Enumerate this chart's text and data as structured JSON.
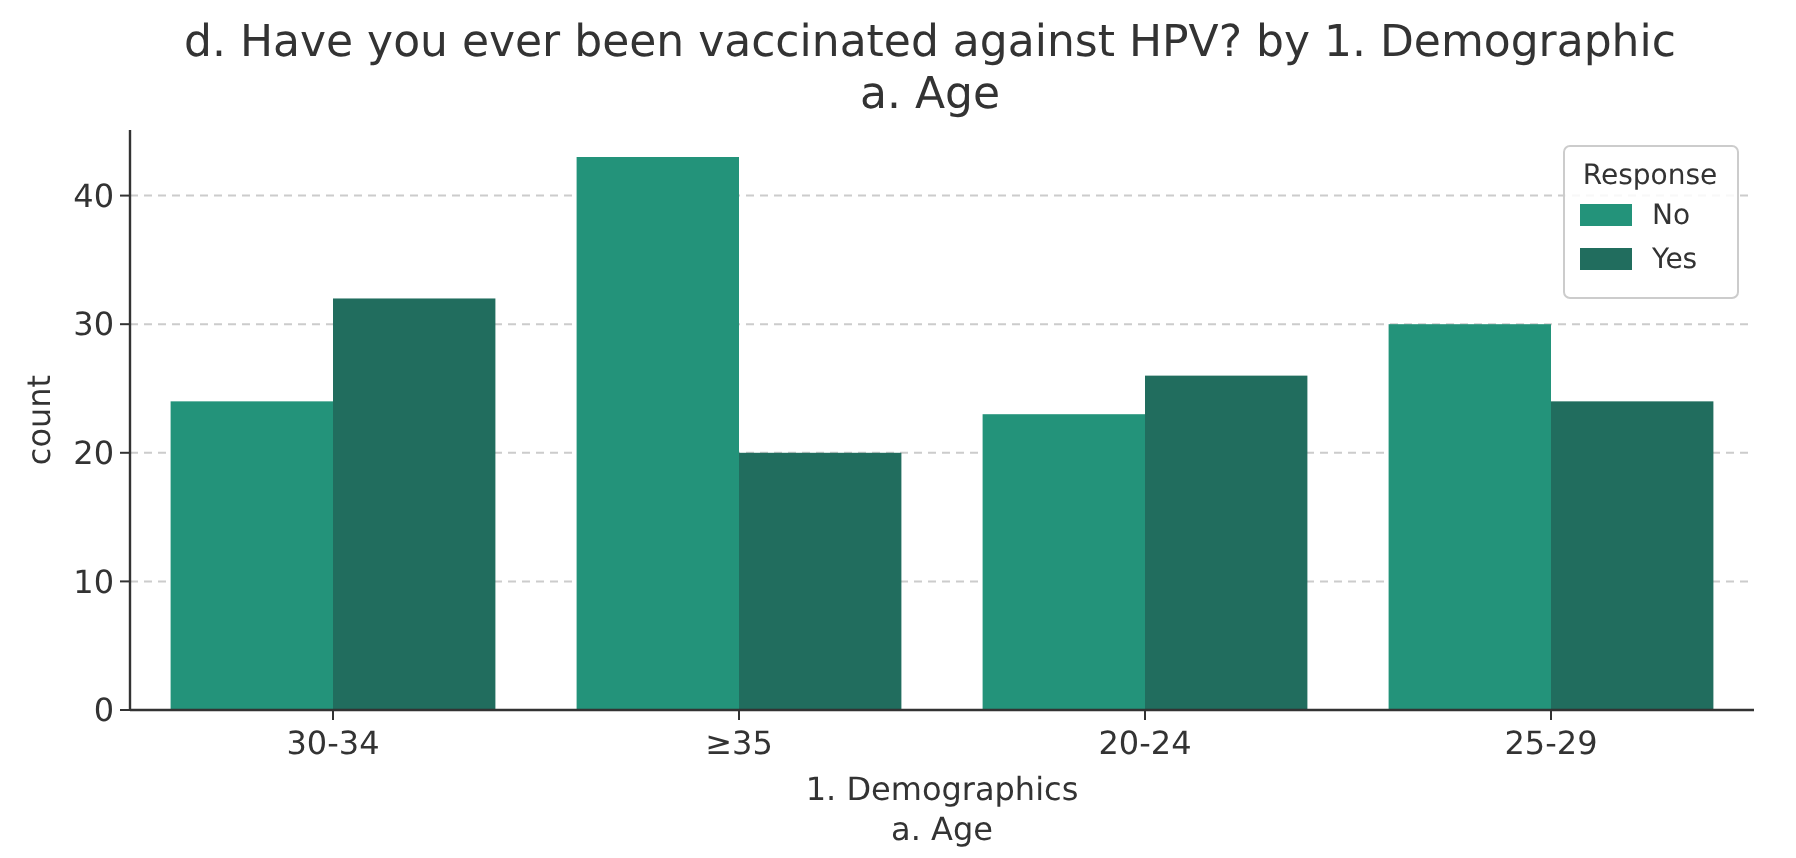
{
  "chart_data": {
    "type": "bar",
    "title": "d. Have you ever been vaccinated against HPV?  by 1. Demographic\na. Age",
    "xlabel": "1. Demographics\na. Age",
    "ylabel": "count",
    "legend_title": "Response",
    "categories": [
      "30-34",
      "≥35",
      "20-24",
      "25-29"
    ],
    "series": [
      {
        "name": "No",
        "color": "#23937a",
        "values": [
          24,
          43,
          23,
          30
        ]
      },
      {
        "name": "Yes",
        "color": "#216d5e",
        "values": [
          32,
          20,
          26,
          24
        ]
      }
    ],
    "ylim": [
      0,
      45.1
    ],
    "yticks": [
      0,
      10,
      20,
      30,
      40
    ],
    "grid": "y",
    "legend": "top right"
  }
}
